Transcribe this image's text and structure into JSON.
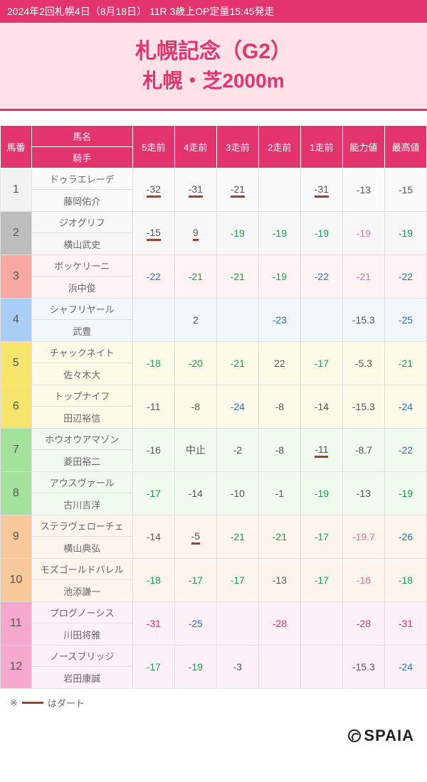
{
  "header_info": "2024年2回札幌4日（8月18日） 11R 3歳上OP定量15:45発走",
  "title_main": "札幌記念（G2）",
  "title_sub": "札幌・芝2000m",
  "columns": {
    "num": "馬番",
    "name": "馬名",
    "jockey": "騎手",
    "r5": "5走前",
    "r4": "4走前",
    "r3": "3走前",
    "r2": "2走前",
    "r1": "1走前",
    "ability": "能力値",
    "best": "最高値"
  },
  "col_widths": {
    "num": 40,
    "name": 130,
    "val": 54
  },
  "colors": {
    "header_bg": "#e4346e",
    "title_bg": "#ffe2e8",
    "dirt_line": "#a04030",
    "text_default": "#555555",
    "text_green": "#1a9e4b",
    "text_blue": "#2b6fd4",
    "text_red": "#e4346e",
    "text_pink": "#f26aa0"
  },
  "num_colors": {
    "1": "#f2f2f2",
    "2": "#bdbdbd",
    "3": "#f7a8a0",
    "4": "#a8cef5",
    "5": "#f5e66b",
    "6": "#f5e66b",
    "7": "#a3e29b",
    "8": "#a3e29b",
    "9": "#f7c89a",
    "10": "#f7c89a",
    "11": "#f6a8ce",
    "12": "#f6a8ce"
  },
  "row_tints": {
    "1": "#fafafa",
    "2": "#f7f7f7",
    "3": "#fff4f3",
    "4": "#f2f7fc",
    "5": "#fcfbe9",
    "6": "#fcfbe9",
    "7": "#f0faef",
    "8": "#f0faef",
    "9": "#fdf5ec",
    "10": "#fdf5ec",
    "11": "#fdf1f7",
    "12": "#fdf1f7"
  },
  "rows": [
    {
      "num": 1,
      "name": "ドゥラエレーデ",
      "jockey": "藤岡佑介",
      "r5": {
        "v": "-32",
        "c": "default",
        "u": true
      },
      "r4": {
        "v": "-31",
        "c": "default",
        "u": true
      },
      "r3": {
        "v": "-21",
        "c": "default",
        "u": true
      },
      "r2": {
        "v": "",
        "c": "default",
        "u": true
      },
      "r1": {
        "v": "-31",
        "c": "default",
        "u": true
      },
      "ab": {
        "v": "-13",
        "c": "default"
      },
      "best": {
        "v": "-15",
        "c": "default"
      }
    },
    {
      "num": 2,
      "name": "ジオグリフ",
      "jockey": "横山武史",
      "r5": {
        "v": "-15",
        "c": "default",
        "u": true
      },
      "r4": {
        "v": "9",
        "c": "default",
        "u": true
      },
      "r3": {
        "v": "-19",
        "c": "green"
      },
      "r2": {
        "v": "-19",
        "c": "green"
      },
      "r1": {
        "v": "-19",
        "c": "green"
      },
      "ab": {
        "v": "-19",
        "c": "pink"
      },
      "best": {
        "v": "-19",
        "c": "green"
      }
    },
    {
      "num": 3,
      "name": "ボッケリーニ",
      "jockey": "浜中俊",
      "r5": {
        "v": "-22",
        "c": "blue"
      },
      "r4": {
        "v": "-21",
        "c": "green"
      },
      "r3": {
        "v": "-21",
        "c": "green"
      },
      "r2": {
        "v": "-19",
        "c": "green"
      },
      "r1": {
        "v": "-22",
        "c": "blue"
      },
      "ab": {
        "v": "-21",
        "c": "pink"
      },
      "best": {
        "v": "-22",
        "c": "blue"
      }
    },
    {
      "num": 4,
      "name": "シャフリヤール",
      "jockey": "武豊",
      "r5": {
        "v": "",
        "c": "default"
      },
      "r4": {
        "v": "2",
        "c": "default"
      },
      "r3": {
        "v": "",
        "c": "default"
      },
      "r2": {
        "v": "-23",
        "c": "blue"
      },
      "r1": {
        "v": "",
        "c": "default"
      },
      "ab": {
        "v": "-15.3",
        "c": "default"
      },
      "best": {
        "v": "-25",
        "c": "blue"
      }
    },
    {
      "num": 5,
      "name": "チャックネイト",
      "jockey": "佐々木大",
      "r5": {
        "v": "-18",
        "c": "green"
      },
      "r4": {
        "v": "-20",
        "c": "green"
      },
      "r3": {
        "v": "-21",
        "c": "green"
      },
      "r2": {
        "v": "22",
        "c": "default"
      },
      "r1": {
        "v": "-17",
        "c": "green"
      },
      "ab": {
        "v": "-5.3",
        "c": "default"
      },
      "best": {
        "v": "-21",
        "c": "green"
      }
    },
    {
      "num": 6,
      "name": "トップナイフ",
      "jockey": "田辺裕信",
      "r5": {
        "v": "-11",
        "c": "default"
      },
      "r4": {
        "v": "-8",
        "c": "default"
      },
      "r3": {
        "v": "-24",
        "c": "blue"
      },
      "r2": {
        "v": "-8",
        "c": "default"
      },
      "r1": {
        "v": "-14",
        "c": "default"
      },
      "ab": {
        "v": "-15.3",
        "c": "default"
      },
      "best": {
        "v": "-24",
        "c": "blue"
      }
    },
    {
      "num": 7,
      "name": "ホウオウアマゾン",
      "jockey": "菱田裕二",
      "r5": {
        "v": "-16",
        "c": "default"
      },
      "r4": {
        "v": "中止",
        "c": "default"
      },
      "r3": {
        "v": "-2",
        "c": "default"
      },
      "r2": {
        "v": "-8",
        "c": "default"
      },
      "r1": {
        "v": "-11",
        "c": "default",
        "u": true
      },
      "ab": {
        "v": "-8.7",
        "c": "default"
      },
      "best": {
        "v": "-22",
        "c": "blue"
      }
    },
    {
      "num": 8,
      "name": "アウスヴァール",
      "jockey": "古川吉洋",
      "r5": {
        "v": "-17",
        "c": "green"
      },
      "r4": {
        "v": "-14",
        "c": "default"
      },
      "r3": {
        "v": "-10",
        "c": "default"
      },
      "r2": {
        "v": "-1",
        "c": "default"
      },
      "r1": {
        "v": "-19",
        "c": "green"
      },
      "ab": {
        "v": "-13",
        "c": "default"
      },
      "best": {
        "v": "-19",
        "c": "green"
      }
    },
    {
      "num": 9,
      "name": "ステラヴェローチェ",
      "jockey": "横山典弘",
      "r5": {
        "v": "-14",
        "c": "default"
      },
      "r4": {
        "v": "-5",
        "c": "default",
        "u": true
      },
      "r3": {
        "v": "-21",
        "c": "green"
      },
      "r2": {
        "v": "-21",
        "c": "green"
      },
      "r1": {
        "v": "-17",
        "c": "green"
      },
      "ab": {
        "v": "-19.7",
        "c": "pink"
      },
      "best": {
        "v": "-26",
        "c": "blue"
      }
    },
    {
      "num": 10,
      "name": "モズゴールドバレル",
      "jockey": "池添謙一",
      "r5": {
        "v": "-18",
        "c": "green"
      },
      "r4": {
        "v": "-17",
        "c": "green"
      },
      "r3": {
        "v": "-17",
        "c": "green"
      },
      "r2": {
        "v": "-13",
        "c": "default"
      },
      "r1": {
        "v": "-17",
        "c": "green"
      },
      "ab": {
        "v": "-16",
        "c": "pink"
      },
      "best": {
        "v": "-18",
        "c": "green"
      }
    },
    {
      "num": 11,
      "name": "プログノーシス",
      "jockey": "川田将雅",
      "r5": {
        "v": "-31",
        "c": "red"
      },
      "r4": {
        "v": "-25",
        "c": "blue"
      },
      "r3": {
        "v": "",
        "c": "default"
      },
      "r2": {
        "v": "-28",
        "c": "red"
      },
      "r1": {
        "v": "",
        "c": "default"
      },
      "ab": {
        "v": "-28",
        "c": "red"
      },
      "best": {
        "v": "-31",
        "c": "red"
      }
    },
    {
      "num": 12,
      "name": "ノースブリッジ",
      "jockey": "岩田康誠",
      "r5": {
        "v": "-17",
        "c": "green"
      },
      "r4": {
        "v": "-19",
        "c": "green"
      },
      "r3": {
        "v": "-3",
        "c": "default"
      },
      "r2": {
        "v": "",
        "c": "default"
      },
      "r1": {
        "v": "",
        "c": "default"
      },
      "ab": {
        "v": "-15.3",
        "c": "default"
      },
      "best": {
        "v": "-24",
        "c": "blue"
      }
    }
  ],
  "footer_note_prefix": "※",
  "footer_note_suffix": "はダート",
  "brand": "SPAIA"
}
